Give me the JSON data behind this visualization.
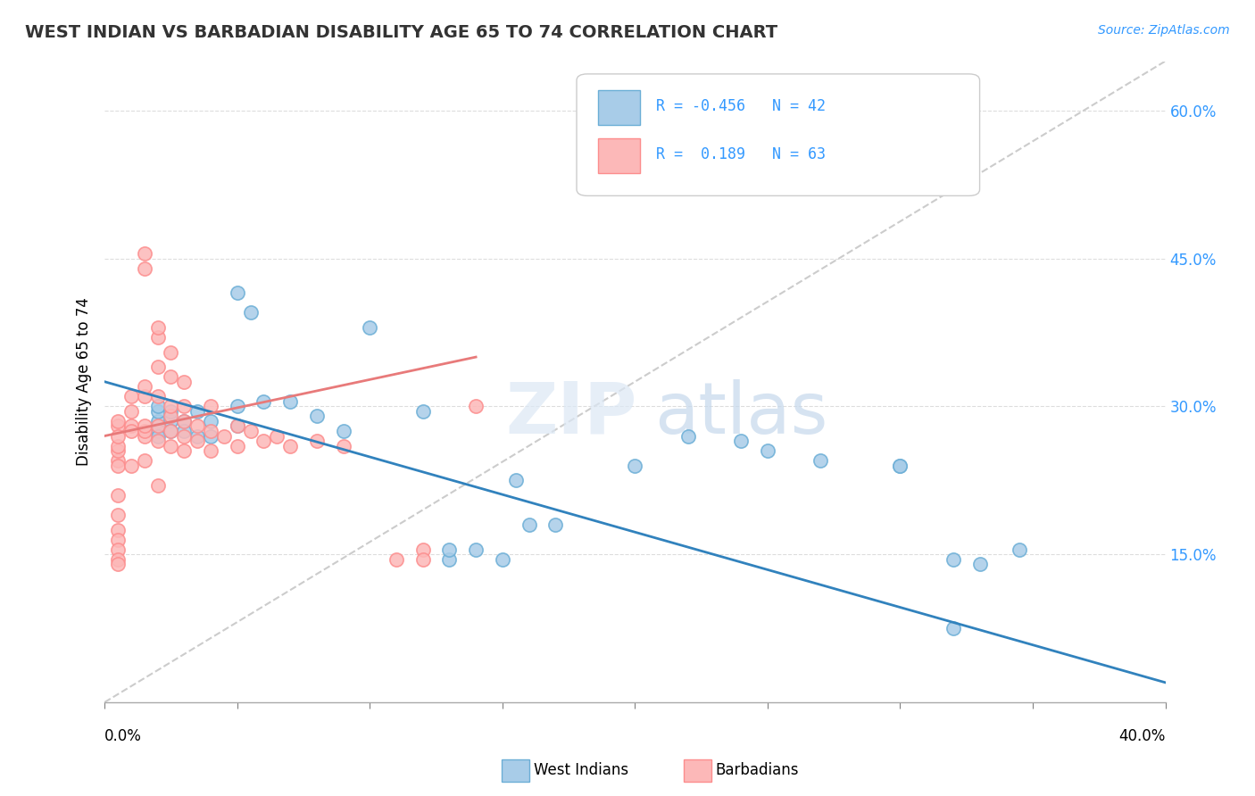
{
  "title": "WEST INDIAN VS BARBADIAN DISABILITY AGE 65 TO 74 CORRELATION CHART",
  "source": "Source: ZipAtlas.com",
  "ylabel": "Disability Age 65 to 74",
  "x_range": [
    0.0,
    0.4
  ],
  "y_range": [
    0.0,
    0.65
  ],
  "legend": {
    "blue_r": "-0.456",
    "blue_n": "42",
    "pink_r": "0.189",
    "pink_n": "63"
  },
  "blue_color": "#6baed6",
  "pink_color": "#fc8d8d",
  "blue_fill": "#a8cce8",
  "pink_fill": "#fcb8b8",
  "trend_blue": "#3182bd",
  "trend_pink": "#e87a7a",
  "ref_line_color": "#cccccc",
  "west_indian_points": [
    [
      0.02,
      0.285
    ],
    [
      0.02,
      0.275
    ],
    [
      0.02,
      0.295
    ],
    [
      0.02,
      0.27
    ],
    [
      0.02,
      0.3
    ],
    [
      0.025,
      0.285
    ],
    [
      0.025,
      0.275
    ],
    [
      0.025,
      0.295
    ],
    [
      0.03,
      0.285
    ],
    [
      0.03,
      0.275
    ],
    [
      0.035,
      0.295
    ],
    [
      0.035,
      0.27
    ],
    [
      0.04,
      0.285
    ],
    [
      0.04,
      0.27
    ],
    [
      0.05,
      0.28
    ],
    [
      0.05,
      0.3
    ],
    [
      0.06,
      0.305
    ],
    [
      0.07,
      0.305
    ],
    [
      0.08,
      0.29
    ],
    [
      0.09,
      0.275
    ],
    [
      0.1,
      0.38
    ],
    [
      0.12,
      0.295
    ],
    [
      0.13,
      0.145
    ],
    [
      0.13,
      0.155
    ],
    [
      0.14,
      0.155
    ],
    [
      0.15,
      0.145
    ],
    [
      0.155,
      0.225
    ],
    [
      0.16,
      0.18
    ],
    [
      0.17,
      0.18
    ],
    [
      0.2,
      0.24
    ],
    [
      0.22,
      0.27
    ],
    [
      0.24,
      0.265
    ],
    [
      0.25,
      0.255
    ],
    [
      0.27,
      0.245
    ],
    [
      0.3,
      0.24
    ],
    [
      0.3,
      0.24
    ],
    [
      0.32,
      0.145
    ],
    [
      0.33,
      0.14
    ],
    [
      0.345,
      0.155
    ],
    [
      0.05,
      0.415
    ],
    [
      0.055,
      0.395
    ],
    [
      0.32,
      0.075
    ]
  ],
  "barbadian_points": [
    [
      0.005,
      0.28
    ],
    [
      0.005,
      0.285
    ],
    [
      0.01,
      0.28
    ],
    [
      0.01,
      0.31
    ],
    [
      0.01,
      0.295
    ],
    [
      0.01,
      0.275
    ],
    [
      0.015,
      0.27
    ],
    [
      0.015,
      0.275
    ],
    [
      0.015,
      0.28
    ],
    [
      0.015,
      0.31
    ],
    [
      0.015,
      0.32
    ],
    [
      0.015,
      0.44
    ],
    [
      0.015,
      0.455
    ],
    [
      0.02,
      0.265
    ],
    [
      0.02,
      0.28
    ],
    [
      0.02,
      0.31
    ],
    [
      0.02,
      0.34
    ],
    [
      0.02,
      0.37
    ],
    [
      0.02,
      0.38
    ],
    [
      0.025,
      0.26
    ],
    [
      0.025,
      0.275
    ],
    [
      0.025,
      0.29
    ],
    [
      0.025,
      0.3
    ],
    [
      0.025,
      0.33
    ],
    [
      0.025,
      0.355
    ],
    [
      0.03,
      0.255
    ],
    [
      0.03,
      0.27
    ],
    [
      0.03,
      0.285
    ],
    [
      0.03,
      0.3
    ],
    [
      0.03,
      0.325
    ],
    [
      0.035,
      0.265
    ],
    [
      0.035,
      0.28
    ],
    [
      0.04,
      0.255
    ],
    [
      0.04,
      0.275
    ],
    [
      0.04,
      0.3
    ],
    [
      0.045,
      0.27
    ],
    [
      0.05,
      0.26
    ],
    [
      0.05,
      0.28
    ],
    [
      0.055,
      0.275
    ],
    [
      0.06,
      0.265
    ],
    [
      0.065,
      0.27
    ],
    [
      0.07,
      0.26
    ],
    [
      0.08,
      0.265
    ],
    [
      0.09,
      0.26
    ],
    [
      0.11,
      0.145
    ],
    [
      0.12,
      0.155
    ],
    [
      0.12,
      0.145
    ],
    [
      0.005,
      0.245
    ],
    [
      0.005,
      0.24
    ],
    [
      0.01,
      0.24
    ],
    [
      0.015,
      0.245
    ],
    [
      0.02,
      0.22
    ],
    [
      0.14,
      0.3
    ],
    [
      0.005,
      0.255
    ],
    [
      0.005,
      0.26
    ],
    [
      0.005,
      0.27
    ],
    [
      0.005,
      0.21
    ],
    [
      0.005,
      0.19
    ],
    [
      0.005,
      0.175
    ],
    [
      0.005,
      0.165
    ],
    [
      0.005,
      0.155
    ],
    [
      0.005,
      0.145
    ],
    [
      0.005,
      0.14
    ]
  ]
}
